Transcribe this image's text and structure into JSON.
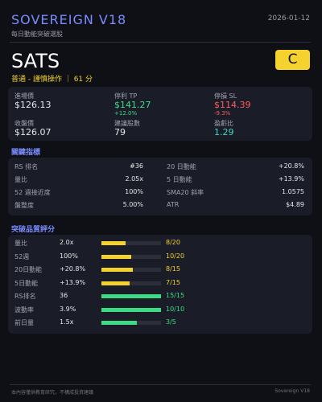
{
  "header": {
    "title": "SOVEREIGN V18",
    "subtitle": "每日動能突破選股",
    "date": "2026-01-12"
  },
  "stock": {
    "ticker": "SATS",
    "grade": "C",
    "rating": "普通 - 謹慎操作 ｜ 61 分"
  },
  "summary": [
    {
      "label": "進場價",
      "value": "$126.13"
    },
    {
      "label": "停利 TP",
      "value": "$141.27",
      "sub": "+12.0%",
      "tone": "up"
    },
    {
      "label": "停損 SL",
      "value": "$114.39",
      "sub": "-9.3%",
      "tone": "down"
    },
    {
      "label": "收盤價",
      "value": "$126.07"
    },
    {
      "label": "建議股數",
      "value": "79"
    },
    {
      "label": "盈虧比",
      "value": "1.29",
      "tone": "teal"
    }
  ],
  "indicators": {
    "title": "關鍵指標",
    "rows": [
      [
        "RS 排名",
        "#36",
        "20 日動能",
        "+20.8%"
      ],
      [
        "量比",
        "2.05x",
        "5 日動能",
        "+13.9%"
      ],
      [
        "52 週接近度",
        "100%",
        "SMA20 斜率",
        "1.0575"
      ],
      [
        "盤整度",
        "5.00%",
        "ATR",
        "$4.89"
      ]
    ]
  },
  "quality": {
    "title": "突破品質評分",
    "rows": [
      {
        "label": "量比",
        "value": "2.0x",
        "score": 8,
        "max": 20,
        "score_label": "8/20"
      },
      {
        "label": "52週",
        "value": "100%",
        "score": 10,
        "max": 20,
        "score_label": "10/20"
      },
      {
        "label": "20日動能",
        "value": "+20.8%",
        "score": 8,
        "max": 15,
        "score_label": "8/15"
      },
      {
        "label": "5日動能",
        "value": "+13.9%",
        "score": 7,
        "max": 15,
        "score_label": "7/15"
      },
      {
        "label": "RS排名",
        "value": "36",
        "score": 15,
        "max": 15,
        "score_label": "15/15"
      },
      {
        "label": "波動率",
        "value": "3.9%",
        "score": 10,
        "max": 10,
        "score_label": "10/10"
      },
      {
        "label": "前日量",
        "value": "1.5x",
        "score": 3,
        "max": 5,
        "score_label": "3/5"
      }
    ]
  },
  "footer": {
    "disclaimer": "本內容僅供教育研究，不構成投資建議",
    "brand": "Sovereign V18"
  }
}
